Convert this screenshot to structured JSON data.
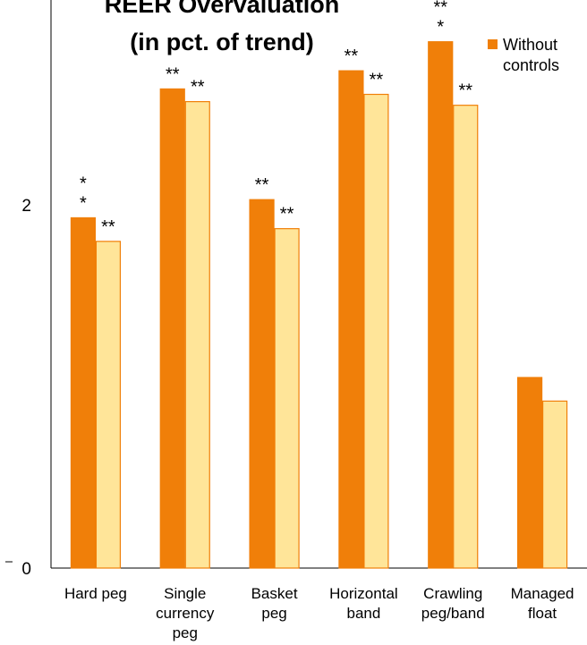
{
  "chart_data": {
    "type": "bar",
    "title": [
      "REER Overvaluation",
      "(in pct. of trend)"
    ],
    "xlabel": "",
    "ylabel": "",
    "yticks": [
      0,
      2
    ],
    "ylim": [
      0,
      3.13
    ],
    "grid": false,
    "legend_position": "top-right",
    "categories": [
      [
        "Hard peg"
      ],
      [
        "Single",
        "currency",
        "peg"
      ],
      [
        "Basket",
        "peg"
      ],
      [
        "Horizontal",
        "band"
      ],
      [
        "Crawling",
        "peg/band"
      ],
      [
        "Managed",
        "float"
      ]
    ],
    "series": [
      {
        "name": [
          "Without",
          "controls"
        ],
        "color": "#F07F09",
        "edge": "#F07F09",
        "values": [
          1.93,
          2.64,
          2.03,
          2.74,
          2.9,
          1.05
        ],
        "significance": [
          [
            "*",
            "*"
          ],
          [
            "**"
          ],
          [
            "**"
          ],
          [
            "**"
          ],
          [
            "**",
            "*"
          ],
          []
        ]
      },
      {
        "color": "#FFE599",
        "edge": "#F07F09",
        "values": [
          1.8,
          2.57,
          1.87,
          2.61,
          2.55,
          0.92
        ],
        "significance": [
          [
            "**"
          ],
          [
            "**"
          ],
          [
            "**"
          ],
          [
            "**"
          ],
          [
            "**"
          ],
          []
        ]
      }
    ]
  }
}
